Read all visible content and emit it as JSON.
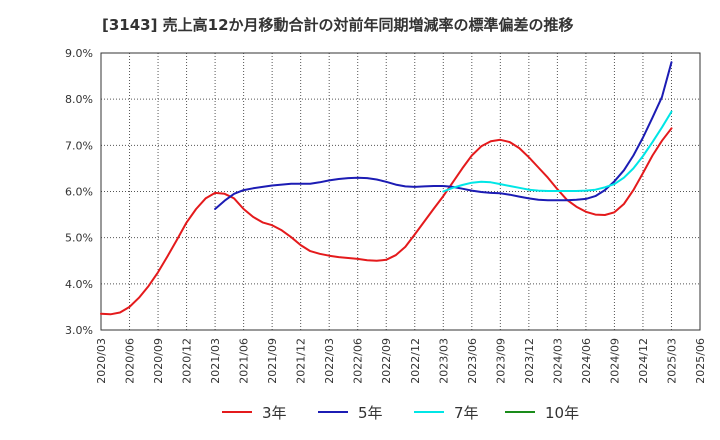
{
  "chart_data": {
    "type": "line",
    "title": "[3143]  売上高12か月移動合計の対前年同期増減率の標準偏差の推移",
    "xlabel": "",
    "ylabel": "",
    "ylim": [
      3.0,
      9.0
    ],
    "yticks": [
      "9.0%",
      "8.0%",
      "7.0%",
      "6.0%",
      "5.0%",
      "4.0%",
      "3.0%"
    ],
    "xticks": [
      "2020/03",
      "2020/06",
      "2020/09",
      "2020/12",
      "2021/03",
      "2021/06",
      "2021/09",
      "2021/12",
      "2022/03",
      "2022/06",
      "2022/09",
      "2022/12",
      "2023/03",
      "2023/06",
      "2023/09",
      "2023/12",
      "2024/03",
      "2024/06",
      "2024/09",
      "2024/12",
      "2025/03",
      "2025/06"
    ],
    "grid": true,
    "legend_position": "bottom",
    "series": [
      {
        "name": "3年",
        "color": "#e41a1c",
        "x": [
          "2020/03",
          "2020/04",
          "2020/05",
          "2020/06",
          "2020/07",
          "2020/08",
          "2020/09",
          "2020/10",
          "2020/11",
          "2020/12",
          "2021/01",
          "2021/02",
          "2021/03",
          "2021/04",
          "2021/05",
          "2021/06",
          "2021/07",
          "2021/08",
          "2021/09",
          "2021/10",
          "2021/11",
          "2021/12",
          "2022/01",
          "2022/02",
          "2022/03",
          "2022/04",
          "2022/05",
          "2022/06",
          "2022/07",
          "2022/08",
          "2022/09",
          "2022/10",
          "2022/11",
          "2022/12",
          "2023/01",
          "2023/02",
          "2023/03",
          "2023/04",
          "2023/05",
          "2023/06",
          "2023/07",
          "2023/08",
          "2023/09",
          "2023/10",
          "2023/11",
          "2023/12",
          "2024/01",
          "2024/02",
          "2024/03",
          "2024/04",
          "2024/05",
          "2024/06",
          "2024/07",
          "2024/08",
          "2024/09",
          "2024/10",
          "2024/11",
          "2024/12",
          "2025/01",
          "2025/02",
          "2025/03"
        ],
        "values": [
          3.35,
          3.34,
          3.38,
          3.5,
          3.7,
          3.95,
          4.25,
          4.6,
          4.96,
          5.33,
          5.62,
          5.85,
          5.97,
          5.95,
          5.85,
          5.62,
          5.45,
          5.33,
          5.27,
          5.16,
          5.01,
          4.84,
          4.71,
          4.65,
          4.61,
          4.58,
          4.56,
          4.54,
          4.51,
          4.5,
          4.52,
          4.62,
          4.8,
          5.07,
          5.35,
          5.63,
          5.9,
          6.2,
          6.5,
          6.78,
          6.98,
          7.09,
          7.12,
          7.07,
          6.94,
          6.74,
          6.52,
          6.3,
          6.05,
          5.82,
          5.67,
          5.56,
          5.5,
          5.49,
          5.55,
          5.73,
          6.03,
          6.4,
          6.78,
          7.1,
          7.37
        ]
      },
      {
        "name": "5年",
        "color": "#1c1cb4",
        "x": [
          "2021/03",
          "2021/04",
          "2021/05",
          "2021/06",
          "2021/07",
          "2021/08",
          "2021/09",
          "2021/10",
          "2021/11",
          "2021/12",
          "2022/01",
          "2022/02",
          "2022/03",
          "2022/04",
          "2022/05",
          "2022/06",
          "2022/07",
          "2022/08",
          "2022/09",
          "2022/10",
          "2022/11",
          "2022/12",
          "2023/01",
          "2023/02",
          "2023/03",
          "2023/04",
          "2023/05",
          "2023/06",
          "2023/07",
          "2023/08",
          "2023/09",
          "2023/10",
          "2023/11",
          "2023/12",
          "2024/01",
          "2024/02",
          "2024/03",
          "2024/04",
          "2024/05",
          "2024/06",
          "2024/07",
          "2024/08",
          "2024/09",
          "2024/10",
          "2024/11",
          "2024/12",
          "2025/01",
          "2025/02",
          "2025/03"
        ],
        "values": [
          5.62,
          5.8,
          5.95,
          6.03,
          6.07,
          6.1,
          6.13,
          6.15,
          6.17,
          6.17,
          6.17,
          6.2,
          6.24,
          6.27,
          6.29,
          6.3,
          6.29,
          6.26,
          6.21,
          6.15,
          6.11,
          6.1,
          6.11,
          6.12,
          6.12,
          6.1,
          6.06,
          6.02,
          5.99,
          5.97,
          5.96,
          5.93,
          5.89,
          5.85,
          5.82,
          5.81,
          5.81,
          5.81,
          5.82,
          5.84,
          5.9,
          6.03,
          6.22,
          6.46,
          6.78,
          7.17,
          7.6,
          8.05,
          8.8
        ]
      },
      {
        "name": "7年",
        "color": "#00e6e6",
        "x": [
          "2023/03",
          "2023/04",
          "2023/05",
          "2023/06",
          "2023/07",
          "2023/08",
          "2023/09",
          "2023/10",
          "2023/11",
          "2023/12",
          "2024/01",
          "2024/02",
          "2024/03",
          "2024/04",
          "2024/05",
          "2024/06",
          "2024/07",
          "2024/08",
          "2024/09",
          "2024/10",
          "2024/11",
          "2024/12",
          "2025/01",
          "2025/02",
          "2025/03"
        ],
        "values": [
          6.0,
          6.08,
          6.14,
          6.19,
          6.21,
          6.2,
          6.16,
          6.12,
          6.08,
          6.04,
          6.02,
          6.01,
          6.01,
          6.01,
          6.01,
          6.02,
          6.04,
          6.09,
          6.16,
          6.3,
          6.5,
          6.77,
          7.07,
          7.39,
          7.73
        ]
      },
      {
        "name": "10年",
        "color": "#1a8c1a",
        "x": [],
        "values": []
      }
    ]
  }
}
